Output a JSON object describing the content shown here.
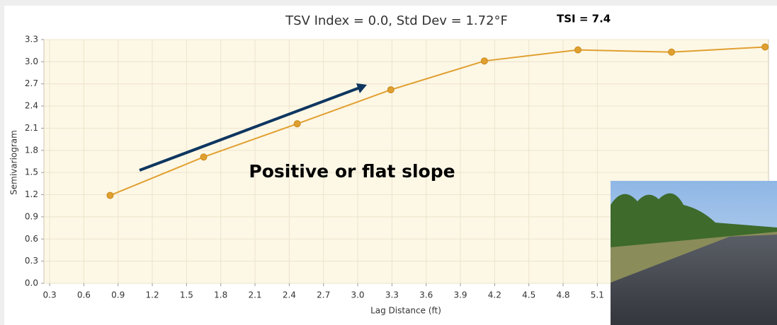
{
  "chart_data": {
    "type": "line",
    "title": "TSV Index = 0.0, Std Dev = 1.72°F",
    "subtitle": "TSI = 7.4",
    "x_label": "Lag Distance (ft)",
    "y_label": "Semivariogram",
    "annotation": "Positive or flat slope",
    "x": [
      0.83,
      1.65,
      2.47,
      3.29,
      4.11,
      4.93,
      5.75,
      6.57
    ],
    "values": [
      1.19,
      1.71,
      2.16,
      2.62,
      3.01,
      3.16,
      3.13,
      3.2
    ],
    "color": "#e0a030",
    "xlim": [
      0.25,
      6.6
    ],
    "ylim": [
      0,
      3.3
    ],
    "xticks": [
      0.3,
      0.6,
      0.9,
      1.2,
      1.5,
      1.8,
      2.1,
      2.4,
      2.7,
      {
        "value": 3,
        "label": "3.0"
      },
      3.3,
      3.6,
      3.9,
      4.2,
      4.5,
      4.8,
      5.1
    ],
    "yticks": [
      {
        "value": 0,
        "label": "0.0"
      },
      0.3,
      0.6,
      0.9,
      1.2,
      1.5,
      1.8,
      2.1,
      2.4,
      2.7,
      {
        "value": 3,
        "label": "3.0"
      },
      3.3
    ],
    "grid": true
  }
}
